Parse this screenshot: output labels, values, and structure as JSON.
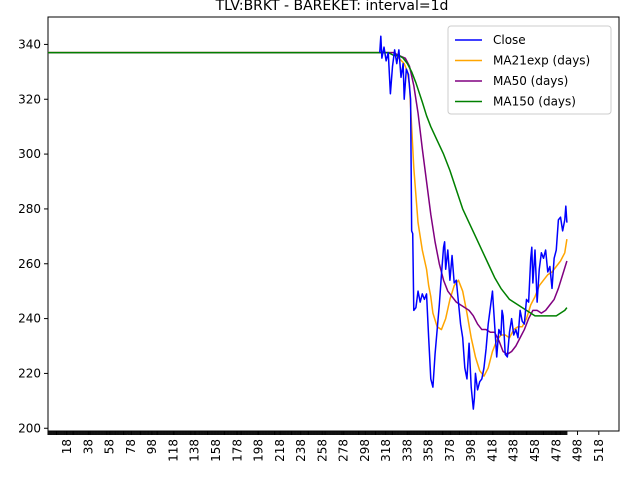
{
  "chart_data": {
    "type": "line",
    "title": "TLV:BRKT - BAREKET: interval=1d",
    "xlabel": "",
    "ylabel": "",
    "xlim": [
      0,
      537
    ],
    "ylim": [
      199,
      350
    ],
    "x_ticks": [
      18,
      38,
      58,
      78,
      98,
      118,
      138,
      158,
      178,
      198,
      218,
      238,
      258,
      278,
      298,
      318,
      338,
      358,
      378,
      398,
      418,
      438,
      458,
      478,
      498,
      518
    ],
    "y_ticks": [
      200,
      220,
      240,
      260,
      280,
      300,
      320,
      340
    ],
    "grid": false,
    "legend_position": "upper right",
    "series": [
      {
        "name": "Close",
        "color": "#0000ff",
        "points": [
          [
            312,
            337
          ],
          [
            313,
            343
          ],
          [
            314,
            335
          ],
          [
            316,
            339
          ],
          [
            318,
            334
          ],
          [
            320,
            337
          ],
          [
            322,
            322
          ],
          [
            324,
            332
          ],
          [
            326,
            338
          ],
          [
            328,
            333
          ],
          [
            330,
            338
          ],
          [
            332,
            328
          ],
          [
            334,
            333
          ],
          [
            335,
            320
          ],
          [
            337,
            331
          ],
          [
            339,
            329
          ],
          [
            341,
            320
          ],
          [
            342,
            272
          ],
          [
            343,
            271
          ],
          [
            344,
            243
          ],
          [
            346,
            244
          ],
          [
            348,
            250
          ],
          [
            350,
            246
          ],
          [
            352,
            249
          ],
          [
            354,
            247
          ],
          [
            356,
            249
          ],
          [
            358,
            233
          ],
          [
            360,
            218
          ],
          [
            362,
            215
          ],
          [
            364,
            227
          ],
          [
            366,
            236
          ],
          [
            368,
            245
          ],
          [
            370,
            256
          ],
          [
            372,
            266
          ],
          [
            373,
            268
          ],
          [
            374,
            258
          ],
          [
            376,
            265
          ],
          [
            378,
            254
          ],
          [
            380,
            263
          ],
          [
            382,
            253
          ],
          [
            384,
            254
          ],
          [
            386,
            246
          ],
          [
            388,
            238
          ],
          [
            390,
            233
          ],
          [
            392,
            222
          ],
          [
            394,
            218
          ],
          [
            396,
            231
          ],
          [
            398,
            215
          ],
          [
            399,
            211
          ],
          [
            400,
            207
          ],
          [
            401,
            211
          ],
          [
            402,
            220
          ],
          [
            404,
            214
          ],
          [
            406,
            217
          ],
          [
            408,
            218
          ],
          [
            410,
            222
          ],
          [
            412,
            229
          ],
          [
            414,
            238
          ],
          [
            416,
            244
          ],
          [
            418,
            250
          ],
          [
            419,
            244
          ],
          [
            421,
            232
          ],
          [
            422,
            226
          ],
          [
            424,
            236
          ],
          [
            426,
            234
          ],
          [
            427,
            243
          ],
          [
            428,
            241
          ],
          [
            430,
            227
          ],
          [
            432,
            226
          ],
          [
            434,
            235
          ],
          [
            436,
            240
          ],
          [
            438,
            234
          ],
          [
            440,
            236
          ],
          [
            442,
            233
          ],
          [
            444,
            243
          ],
          [
            446,
            239
          ],
          [
            448,
            238
          ],
          [
            450,
            247
          ],
          [
            452,
            246
          ],
          [
            454,
            262
          ],
          [
            455,
            266
          ],
          [
            456,
            253
          ],
          [
            458,
            265
          ],
          [
            460,
            246
          ],
          [
            462,
            258
          ],
          [
            464,
            264
          ],
          [
            466,
            262
          ],
          [
            468,
            265
          ],
          [
            470,
            257
          ],
          [
            472,
            259
          ],
          [
            474,
            251
          ],
          [
            476,
            262
          ],
          [
            478,
            265
          ],
          [
            480,
            276
          ],
          [
            482,
            277
          ],
          [
            484,
            272
          ],
          [
            486,
            276
          ],
          [
            487,
            281
          ],
          [
            488,
            275
          ]
        ]
      },
      {
        "name": "MA21exp (days)",
        "color": "#ffa500",
        "points": [
          [
            0,
            337
          ],
          [
            325,
            337
          ],
          [
            330,
            335
          ],
          [
            335,
            333
          ],
          [
            338,
            330
          ],
          [
            340,
            325
          ],
          [
            342,
            310
          ],
          [
            344,
            295
          ],
          [
            348,
            275
          ],
          [
            352,
            265
          ],
          [
            356,
            258
          ],
          [
            358,
            252
          ],
          [
            360,
            248
          ],
          [
            362,
            242
          ],
          [
            366,
            237
          ],
          [
            370,
            236
          ],
          [
            374,
            240
          ],
          [
            378,
            247
          ],
          [
            382,
            252
          ],
          [
            386,
            254
          ],
          [
            390,
            250
          ],
          [
            394,
            242
          ],
          [
            398,
            233
          ],
          [
            402,
            226
          ],
          [
            406,
            221
          ],
          [
            410,
            219
          ],
          [
            414,
            222
          ],
          [
            418,
            228
          ],
          [
            422,
            232
          ],
          [
            426,
            234
          ],
          [
            430,
            234
          ],
          [
            434,
            233
          ],
          [
            438,
            236
          ],
          [
            442,
            237
          ],
          [
            446,
            237
          ],
          [
            450,
            240
          ],
          [
            454,
            245
          ],
          [
            458,
            248
          ],
          [
            462,
            252
          ],
          [
            466,
            254
          ],
          [
            470,
            256
          ],
          [
            474,
            257
          ],
          [
            478,
            259
          ],
          [
            482,
            261
          ],
          [
            486,
            264
          ],
          [
            488,
            269
          ]
        ]
      },
      {
        "name": "MA50 (days)",
        "color": "#800080",
        "points": [
          [
            0,
            337
          ],
          [
            325,
            337
          ],
          [
            330,
            336
          ],
          [
            336,
            335
          ],
          [
            340,
            332
          ],
          [
            344,
            325
          ],
          [
            348,
            315
          ],
          [
            352,
            302
          ],
          [
            356,
            290
          ],
          [
            360,
            278
          ],
          [
            364,
            268
          ],
          [
            368,
            260
          ],
          [
            372,
            254
          ],
          [
            376,
            250
          ],
          [
            380,
            248
          ],
          [
            384,
            246
          ],
          [
            388,
            245
          ],
          [
            392,
            244
          ],
          [
            396,
            243
          ],
          [
            400,
            241
          ],
          [
            404,
            238
          ],
          [
            408,
            236
          ],
          [
            412,
            236
          ],
          [
            416,
            235
          ],
          [
            420,
            235
          ],
          [
            424,
            232
          ],
          [
            428,
            228
          ],
          [
            432,
            227
          ],
          [
            436,
            228
          ],
          [
            440,
            230
          ],
          [
            444,
            233
          ],
          [
            448,
            236
          ],
          [
            452,
            240
          ],
          [
            456,
            243
          ],
          [
            460,
            243
          ],
          [
            464,
            242
          ],
          [
            468,
            243
          ],
          [
            472,
            245
          ],
          [
            476,
            247
          ],
          [
            480,
            251
          ],
          [
            484,
            256
          ],
          [
            488,
            261
          ]
        ]
      },
      {
        "name": "MA150 (days)",
        "color": "#008000",
        "points": [
          [
            0,
            337
          ],
          [
            320,
            337
          ],
          [
            325,
            336
          ],
          [
            330,
            336
          ],
          [
            334,
            335
          ],
          [
            338,
            333
          ],
          [
            342,
            330
          ],
          [
            346,
            326
          ],
          [
            352,
            319
          ],
          [
            356,
            314
          ],
          [
            360,
            310
          ],
          [
            366,
            305
          ],
          [
            372,
            300
          ],
          [
            378,
            294
          ],
          [
            384,
            287
          ],
          [
            390,
            280
          ],
          [
            396,
            275
          ],
          [
            402,
            270
          ],
          [
            408,
            265
          ],
          [
            414,
            260
          ],
          [
            420,
            255
          ],
          [
            426,
            251
          ],
          [
            430,
            249
          ],
          [
            434,
            247
          ],
          [
            438,
            246
          ],
          [
            442,
            245
          ],
          [
            446,
            244
          ],
          [
            450,
            243
          ],
          [
            454,
            242
          ],
          [
            458,
            241
          ],
          [
            462,
            241
          ],
          [
            466,
            241
          ],
          [
            470,
            241
          ],
          [
            474,
            241
          ],
          [
            478,
            241
          ],
          [
            482,
            242
          ],
          [
            486,
            243
          ],
          [
            488,
            244
          ]
        ]
      }
    ]
  }
}
